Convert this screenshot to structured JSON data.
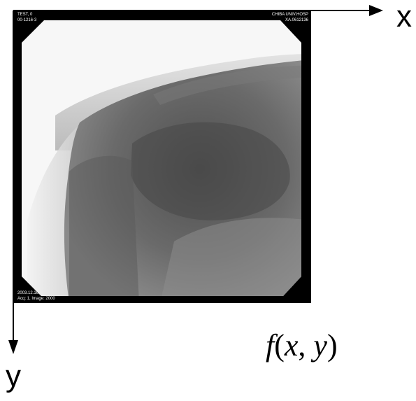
{
  "image": {
    "overlay_top_left": [
      "TEST, 0",
      "00-1216-3"
    ],
    "overlay_top_right": [
      "CHIBA UNIV.HOSP",
      "XA.0612136"
    ],
    "overlay_bottom_left": [
      "2003.12.16",
      "Acq: 1, Image: 2000"
    ]
  },
  "axes": {
    "x_label": "x",
    "y_label": "y"
  },
  "formula": {
    "func": "f",
    "open": "(",
    "x": "x",
    "comma": ",",
    "y": "y",
    "close": ")"
  }
}
